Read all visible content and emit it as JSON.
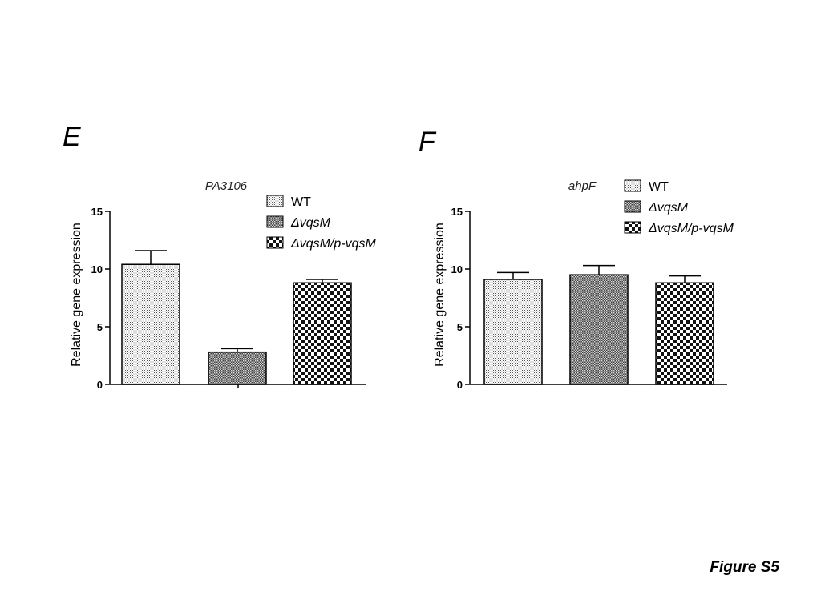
{
  "panel_letters": {
    "e": "E",
    "f": "F"
  },
  "figure_label": "Figure S5",
  "legend_labels": [
    "WT",
    "ΔvqsM",
    "ΔvqsM/p-vqsM"
  ],
  "chart_data": [
    {
      "type": "bar",
      "title": "PA3106",
      "ylabel": "Relative gene expression",
      "xlabel": "",
      "ylim": [
        0,
        15
      ],
      "yticks": [
        "0",
        "5",
        "10",
        "15"
      ],
      "categories": [
        "WT",
        "ΔvqsM",
        "ΔvqsM/p-vqsM"
      ],
      "values": [
        10.4,
        2.8,
        8.8
      ],
      "errors": [
        1.2,
        0.3,
        0.3
      ],
      "legend_position": "top-right"
    },
    {
      "type": "bar",
      "title": "ahpF",
      "ylabel": "Relative gene expression",
      "xlabel": "",
      "ylim": [
        0,
        15
      ],
      "yticks": [
        "0",
        "5",
        "10",
        "15"
      ],
      "categories": [
        "WT",
        "ΔvqsM",
        "ΔvqsM/p-vqsM"
      ],
      "values": [
        9.1,
        9.5,
        8.8
      ],
      "errors": [
        0.6,
        0.8,
        0.6
      ],
      "legend_position": "top-right"
    }
  ]
}
